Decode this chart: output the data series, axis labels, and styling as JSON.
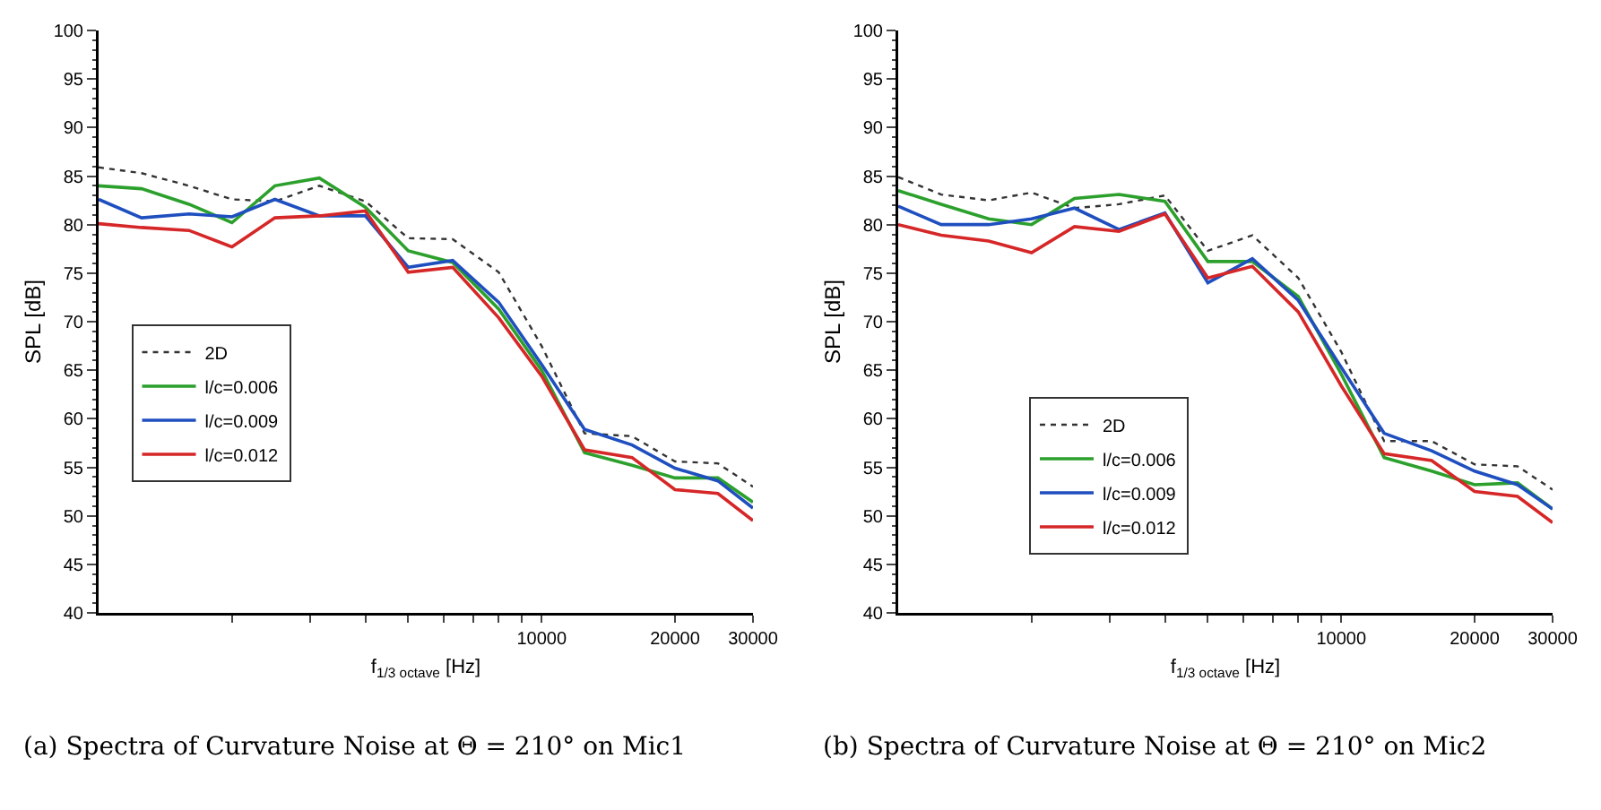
{
  "chart_data": [
    {
      "type": "line",
      "xlabel": "f$_{1/3 octave}$ [Hz]",
      "ylabel": "SPL [dB]",
      "log": "x",
      "grid": false,
      "legend": "left",
      "marker": "none",
      "x": [
        1000,
        1250,
        1600,
        2000,
        2500,
        3150,
        4000,
        5000,
        6300,
        8000,
        10000,
        12500,
        16000,
        20000,
        25000,
        30000
      ],
      "xlim": [
        1000,
        30000
      ],
      "xticks": [
        {
          "value": 2000,
          "label": null
        },
        {
          "value": 3000,
          "label": null
        },
        {
          "value": 4000,
          "label": null
        },
        {
          "value": 5000,
          "label": null
        },
        {
          "value": 6000,
          "label": null
        },
        {
          "value": 7000,
          "label": null
        },
        {
          "value": 8000,
          "label": null
        },
        {
          "value": 9000,
          "label": null
        },
        10000,
        20000,
        30000
      ],
      "ylim": [
        40,
        100
      ],
      "yticks": [
        40,
        45,
        50,
        55,
        60,
        65,
        70,
        75,
        80,
        85,
        90,
        95,
        100
      ],
      "series": [
        {
          "name": "2D",
          "color": "#333333",
          "line_style": "dotted",
          "values": [
            85.9,
            85.3,
            84.0,
            82.6,
            82.4,
            84.0,
            82.4,
            78.6,
            78.5,
            75.1,
            67.5,
            58.5,
            58.2,
            55.6,
            55.4,
            53.0
          ]
        },
        {
          "name": "l/c=0.006",
          "color": "#2ca02c",
          "values": [
            84.0,
            83.7,
            82.1,
            80.2,
            84.0,
            84.8,
            81.8,
            77.3,
            76.1,
            71.3,
            65.0,
            56.5,
            55.2,
            53.9,
            53.9,
            51.4
          ]
        },
        {
          "name": "l/c=0.009",
          "color": "#1f4fbf",
          "values": [
            82.6,
            80.7,
            81.1,
            80.8,
            82.6,
            80.9,
            80.9,
            75.6,
            76.3,
            72.0,
            65.6,
            58.9,
            57.3,
            54.9,
            53.6,
            50.8
          ]
        },
        {
          "name": "l/c=0.012",
          "color": "#d62728",
          "values": [
            80.1,
            79.7,
            79.4,
            77.7,
            80.7,
            80.9,
            81.4,
            75.1,
            75.6,
            70.4,
            64.4,
            56.8,
            56.0,
            52.7,
            52.3,
            49.5
          ]
        }
      ],
      "annotations": [
        "(a) Spectra of Curvature Noise at Θ = 210° on Mic1"
      ]
    },
    {
      "type": "line",
      "xlabel": "f$_{1/3 octave}$ [Hz]",
      "ylabel": "SPL [dB]",
      "log": "x",
      "grid": false,
      "legend": "bottom left",
      "marker": "none",
      "x": [
        1000,
        1250,
        1600,
        2000,
        2500,
        3150,
        4000,
        5000,
        6300,
        8000,
        10000,
        12500,
        16000,
        20000,
        25000,
        30000
      ],
      "xlim": [
        1000,
        30000
      ],
      "xticks": [
        {
          "value": 2000,
          "label": null
        },
        {
          "value": 3000,
          "label": null
        },
        {
          "value": 4000,
          "label": null
        },
        {
          "value": 5000,
          "label": null
        },
        {
          "value": 6000,
          "label": null
        },
        {
          "value": 7000,
          "label": null
        },
        {
          "value": 8000,
          "label": null
        },
        {
          "value": 9000,
          "label": null
        },
        10000,
        20000,
        30000
      ],
      "ylim": [
        40,
        100
      ],
      "yticks": [
        40,
        45,
        50,
        55,
        60,
        65,
        70,
        75,
        80,
        85,
        90,
        95,
        100
      ],
      "series": [
        {
          "name": "2D",
          "color": "#333333",
          "line_style": "dotted",
          "values": [
            84.9,
            83.1,
            82.5,
            83.3,
            81.7,
            82.1,
            83.0,
            77.3,
            78.9,
            74.5,
            66.9,
            57.7,
            57.7,
            55.3,
            55.1,
            52.7
          ]
        },
        {
          "name": "l/c=0.006",
          "color": "#2ca02c",
          "values": [
            83.5,
            82.1,
            80.6,
            80.0,
            82.7,
            83.1,
            82.4,
            76.2,
            76.2,
            72.6,
            64.6,
            56.0,
            54.6,
            53.2,
            53.4,
            50.7
          ]
        },
        {
          "name": "l/c=0.009",
          "color": "#1f4fbf",
          "values": [
            81.9,
            80.0,
            80.0,
            80.6,
            81.7,
            79.5,
            81.2,
            74.0,
            76.5,
            72.2,
            65.3,
            58.5,
            56.7,
            54.6,
            53.2,
            50.7
          ]
        },
        {
          "name": "l/c=0.012",
          "color": "#d62728",
          "values": [
            80.0,
            78.9,
            78.3,
            77.1,
            79.8,
            79.3,
            81.1,
            74.5,
            75.7,
            71.0,
            63.4,
            56.4,
            55.7,
            52.5,
            52.0,
            49.3
          ]
        }
      ],
      "annotations": [
        "(b) Spectra of Curvature Noise at Θ = 210° on Mic2"
      ]
    }
  ]
}
